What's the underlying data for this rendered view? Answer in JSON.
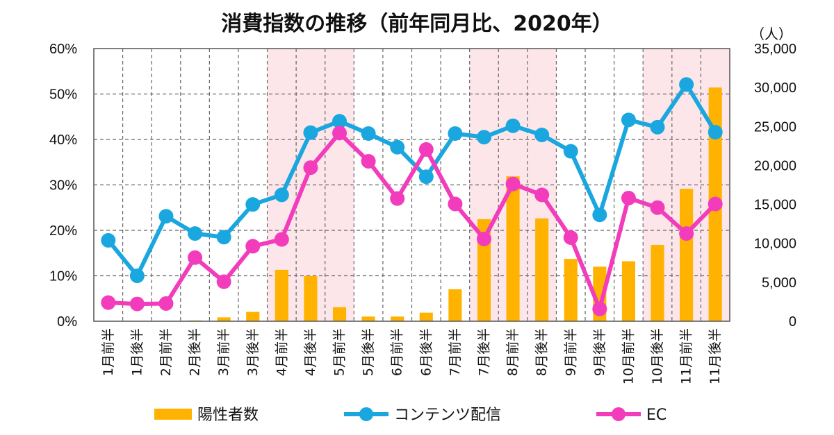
{
  "chart_data": {
    "type": "bar+line",
    "title": "消費指数の推移（前年同月比、2020年）",
    "right_unit": "（人）",
    "categories": [
      "1月前半",
      "1月後半",
      "2月前半",
      "2月後半",
      "3月前半",
      "3月後半",
      "4月前半",
      "4月後半",
      "5月前半",
      "5月後半",
      "6月前半",
      "6月後半",
      "7月前半",
      "7月後半",
      "8月前半",
      "8月後半",
      "9月前半",
      "9月後半",
      "10月前半",
      "10月後半",
      "11月前半",
      "11月後半"
    ],
    "left_axis": {
      "min": 0,
      "max": 0.6,
      "ticks": [
        0,
        0.1,
        0.2,
        0.3,
        0.4,
        0.5,
        0.6
      ],
      "tick_labels": [
        "0%",
        "10%",
        "20%",
        "30%",
        "40%",
        "50%",
        "60%"
      ]
    },
    "right_axis": {
      "min": 0,
      "max": 35000,
      "ticks": [
        0,
        5000,
        10000,
        15000,
        20000,
        25000,
        30000,
        35000
      ],
      "tick_labels": [
        "0",
        "5,000",
        "10,000",
        "15,000",
        "20,000",
        "25,000",
        "30,000",
        "35,000"
      ]
    },
    "shaded_categories": [
      6,
      7,
      8,
      13,
      14,
      15,
      19,
      20,
      21
    ],
    "grid": true,
    "series": [
      {
        "name": "陽性者数",
        "type": "bar",
        "axis": "right",
        "color": "#ffb300",
        "values": [
          0,
          0,
          0,
          100,
          500,
          1200,
          6600,
          5800,
          1800,
          600,
          600,
          1100,
          4100,
          13100,
          18600,
          13200,
          8000,
          7000,
          7700,
          9800,
          17000,
          30000
        ]
      },
      {
        "name": "コンテンツ配信",
        "type": "line",
        "axis": "left",
        "color": "#1aa7e0",
        "values": [
          0.178,
          0.1,
          0.231,
          0.193,
          0.185,
          0.257,
          0.278,
          0.415,
          0.44,
          0.413,
          0.383,
          0.318,
          0.413,
          0.405,
          0.43,
          0.41,
          0.374,
          0.234,
          0.443,
          0.427,
          0.521,
          0.416
        ]
      },
      {
        "name": "EC",
        "type": "line",
        "axis": "left",
        "color": "#f23cbc",
        "values": [
          0.041,
          0.038,
          0.039,
          0.14,
          0.087,
          0.165,
          0.18,
          0.338,
          0.414,
          0.352,
          0.27,
          0.378,
          0.258,
          0.181,
          0.302,
          0.278,
          0.184,
          0.027,
          0.271,
          0.25,
          0.193,
          0.258
        ]
      }
    ],
    "legend_position": "bottom"
  }
}
